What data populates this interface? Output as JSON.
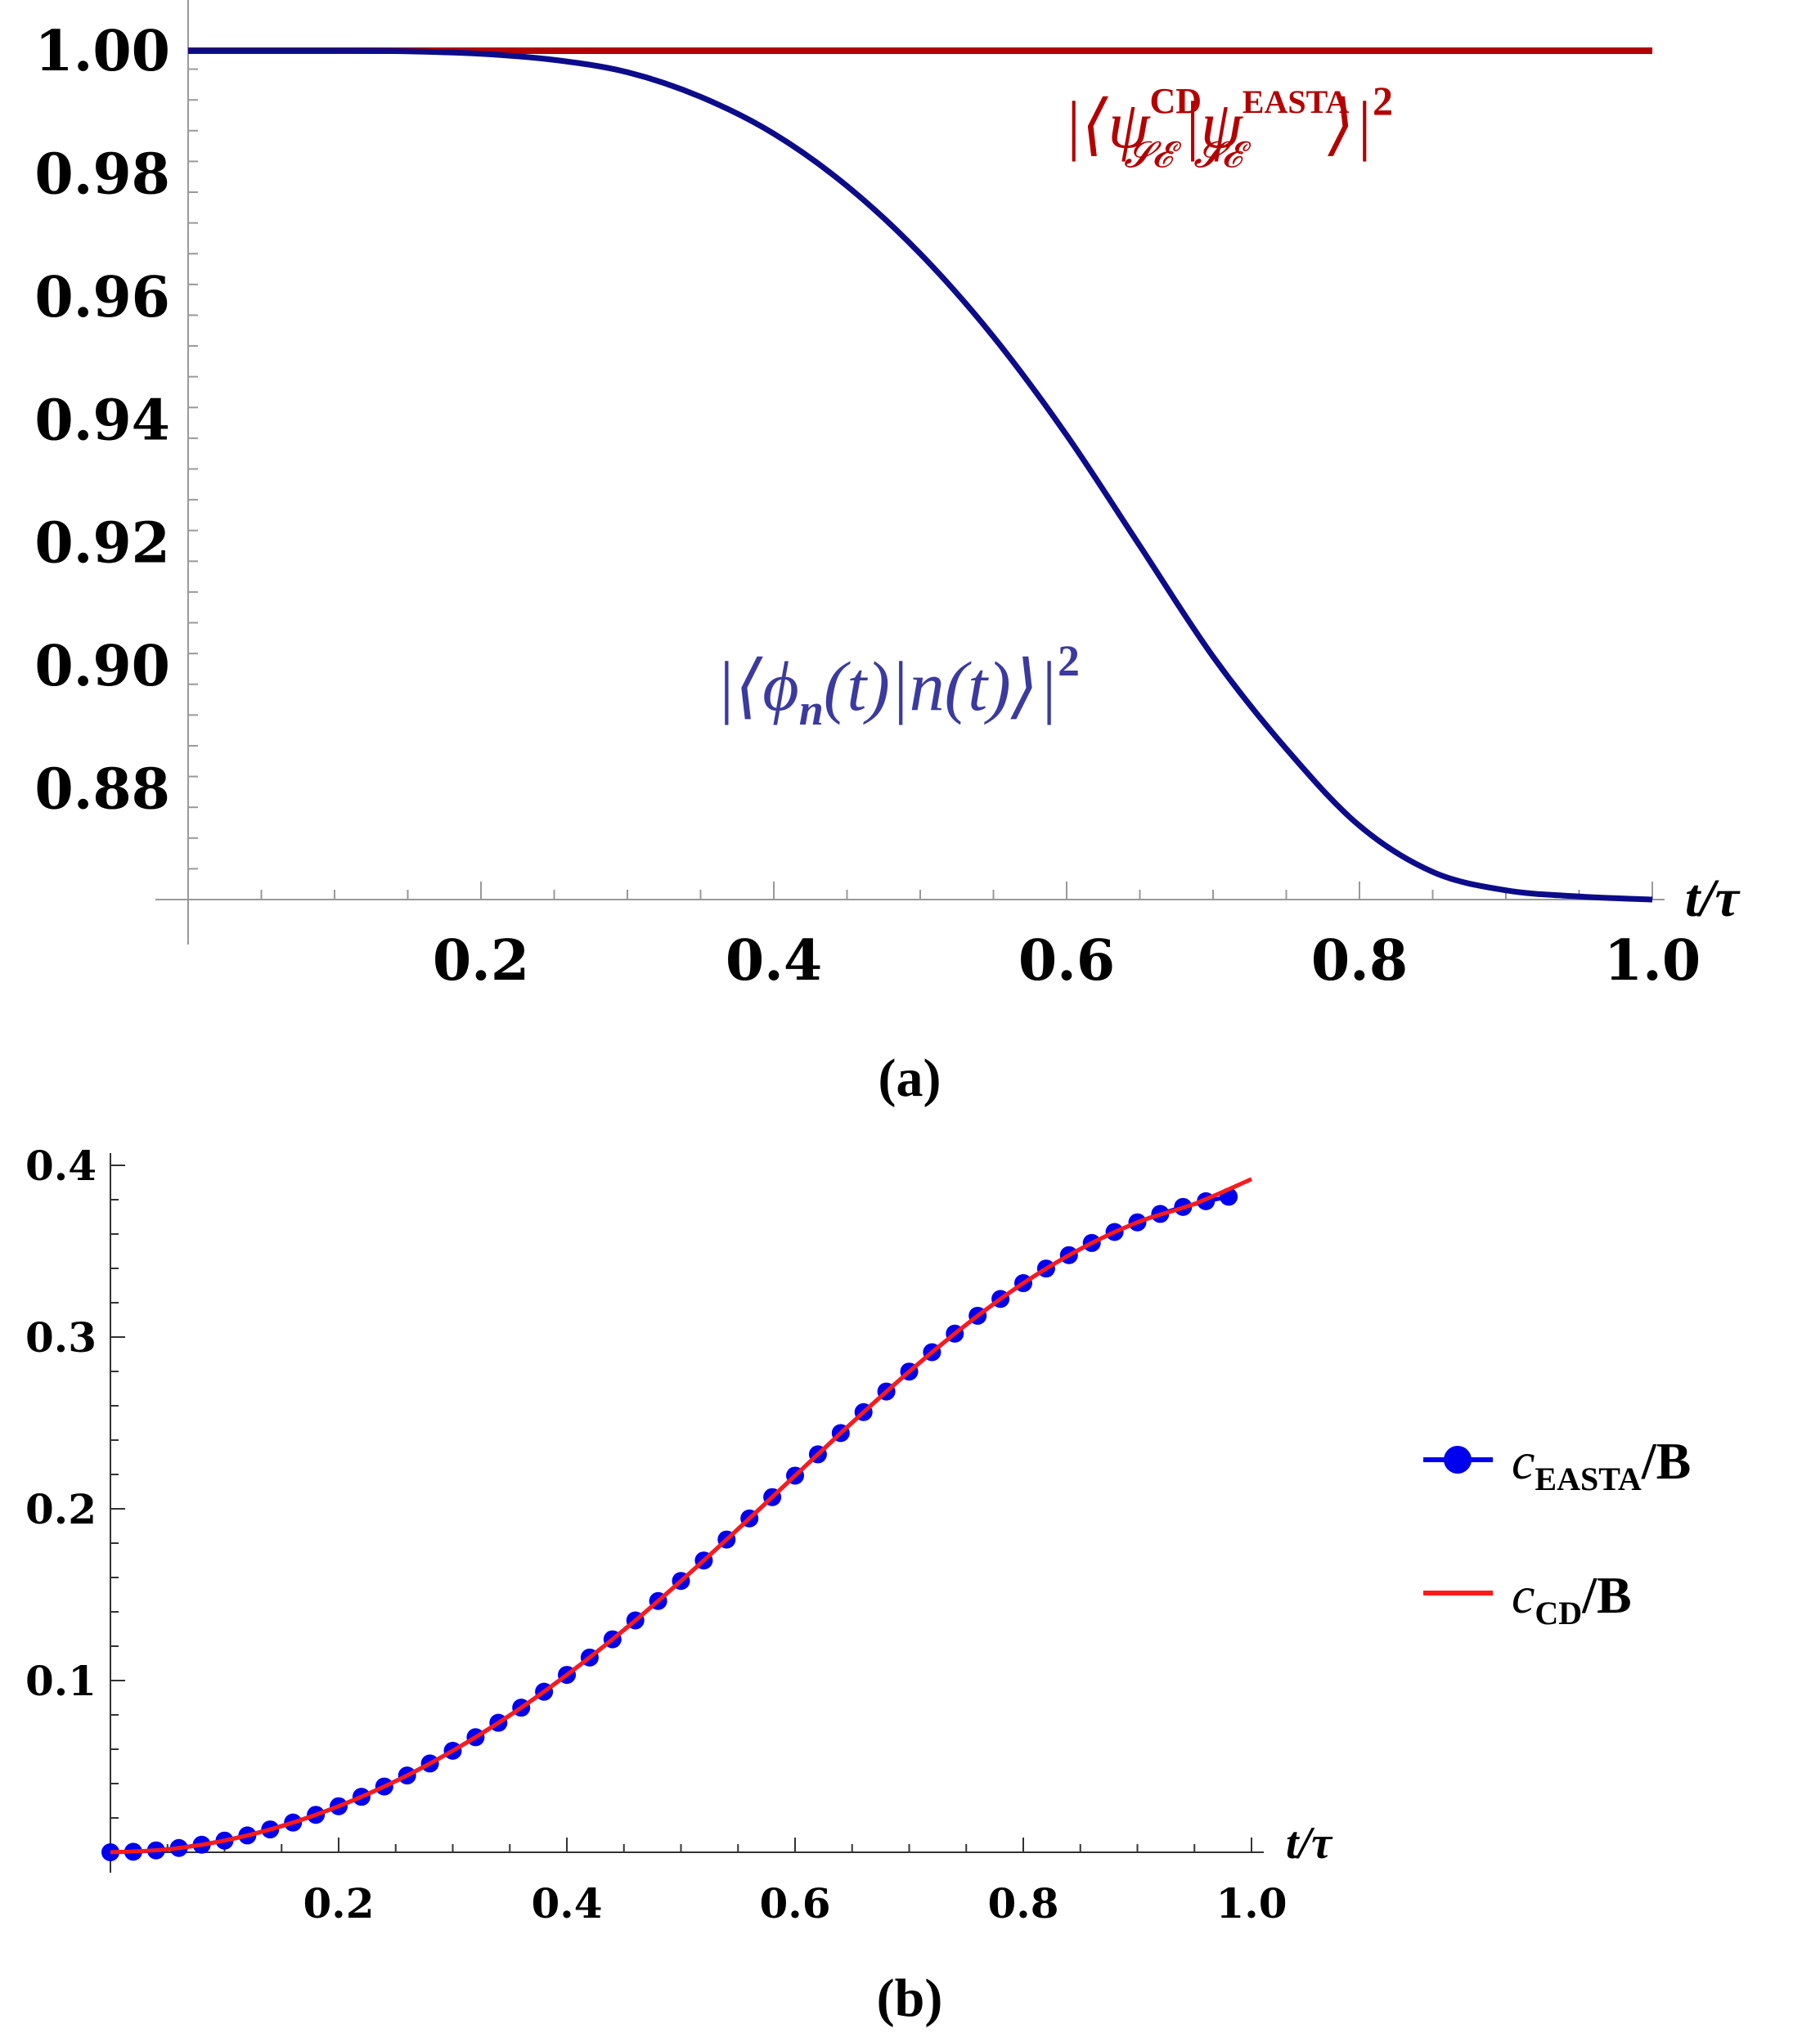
{
  "chart_data": [
    {
      "panel": "a",
      "type": "line",
      "caption": "(a)",
      "xlabel": "t/τ",
      "ylabel": "",
      "xlim": [
        0,
        1.0
      ],
      "ylim": [
        0.862,
        1.0
      ],
      "xticks": [
        "0.2",
        "0.4",
        "0.6",
        "0.8",
        "1.0"
      ],
      "yticks": [
        "1.00",
        "0.98",
        "0.96",
        "0.94",
        "0.92",
        "0.90",
        "0.88"
      ],
      "series": [
        {
          "name": "|⟨ψ_SE^CD|ψ_SE^EASTA⟩|²",
          "color": "#b40000",
          "x": [
            0,
            0.25,
            0.5,
            0.75,
            1.0
          ],
          "y": [
            1.0,
            1.0,
            1.0,
            1.0,
            1.0
          ]
        },
        {
          "name": "|⟨φ_n(t)|n(t)⟩|²",
          "color": "#0c0c8a",
          "x": [
            0,
            0.05,
            0.1,
            0.15,
            0.2,
            0.25,
            0.3,
            0.35,
            0.4,
            0.45,
            0.5,
            0.55,
            0.6,
            0.65,
            0.7,
            0.75,
            0.8,
            0.85,
            0.9,
            0.95,
            1.0
          ],
          "y": [
            1.0,
            1.0,
            1.0,
            0.9999,
            0.9995,
            0.9985,
            0.9965,
            0.9925,
            0.9865,
            0.978,
            0.967,
            0.9535,
            0.9375,
            0.9195,
            0.9015,
            0.8865,
            0.874,
            0.8665,
            0.8635,
            0.8625,
            0.862
          ]
        }
      ],
      "annotations": {
        "fidelity_top_base": "|⟨ψ",
        "fidelity_top_sup1": "CD",
        "fidelity_top_sub1": "𝓢𝓔",
        "fidelity_top_mid": "|ψ",
        "fidelity_top_sup2": "EASTA",
        "fidelity_top_sub2": "𝓢𝓔",
        "fidelity_top_end": "⟩|",
        "fidelity_top_exp": "2",
        "fidelity_bottom": "|⟨ϕ",
        "fidelity_bottom_sub": "n",
        "fidelity_bottom_rest": "(t)|n(t)⟩|",
        "fidelity_bottom_exp": "2"
      }
    },
    {
      "panel": "b",
      "type": "line",
      "caption": "(b)",
      "xlabel": "t/τ",
      "ylabel": "",
      "xlim": [
        0,
        1.0
      ],
      "ylim": [
        0,
        0.4
      ],
      "xticks": [
        "0.2",
        "0.4",
        "0.6",
        "0.8",
        "1.0"
      ],
      "yticks": [
        "0.4",
        "0.3",
        "0.2",
        "0.1"
      ],
      "legend_position": "right",
      "series": [
        {
          "name": "c_EASTA/B",
          "legend_base": "c",
          "legend_sub": "EASTA",
          "legend_tail": "/B",
          "style": "markers",
          "color": "#0000ee",
          "x": [
            0,
            0.02,
            0.04,
            0.06,
            0.08,
            0.1,
            0.12,
            0.14,
            0.16,
            0.18,
            0.2,
            0.22,
            0.24,
            0.26,
            0.28,
            0.3,
            0.32,
            0.34,
            0.36,
            0.38,
            0.4,
            0.42,
            0.44,
            0.46,
            0.48,
            0.5,
            0.52,
            0.54,
            0.56,
            0.58,
            0.6,
            0.62,
            0.64,
            0.66,
            0.68,
            0.7,
            0.72,
            0.74,
            0.76,
            0.78,
            0.8,
            0.82,
            0.84,
            0.86,
            0.88,
            0.9,
            0.92,
            0.94,
            0.96,
            0.98
          ],
          "y": [
            0.0,
            0.0003,
            0.0011,
            0.0025,
            0.0044,
            0.0068,
            0.0098,
            0.0133,
            0.0173,
            0.0218,
            0.0268,
            0.0323,
            0.0383,
            0.0447,
            0.0517,
            0.0591,
            0.067,
            0.0754,
            0.0842,
            0.0935,
            0.1033,
            0.1134,
            0.124,
            0.135,
            0.1463,
            0.158,
            0.1699,
            0.1821,
            0.1944,
            0.2068,
            0.2193,
            0.2317,
            0.2441,
            0.2563,
            0.2683,
            0.2799,
            0.2912,
            0.302,
            0.3124,
            0.3222,
            0.3314,
            0.3399,
            0.3477,
            0.3548,
            0.3612,
            0.3668,
            0.3717,
            0.3758,
            0.3791,
            0.3817
          ]
        },
        {
          "name": "c_CD/B",
          "legend_base": "c",
          "legend_sub": "CD",
          "legend_tail": "/B",
          "style": "line",
          "color": "#ff1a1a",
          "x": [
            0,
            0.05,
            0.1,
            0.15,
            0.2,
            0.25,
            0.3,
            0.35,
            0.4,
            0.45,
            0.5,
            0.55,
            0.6,
            0.65,
            0.7,
            0.75,
            0.8,
            0.85,
            0.9,
            0.95,
            1.0
          ],
          "y": [
            0.0,
            0.0017,
            0.0068,
            0.0152,
            0.0268,
            0.0414,
            0.0591,
            0.0797,
            0.1033,
            0.1294,
            0.158,
            0.1882,
            0.2193,
            0.2502,
            0.2799,
            0.3073,
            0.3314,
            0.3513,
            0.3668,
            0.3776,
            0.392
          ]
        }
      ]
    }
  ]
}
